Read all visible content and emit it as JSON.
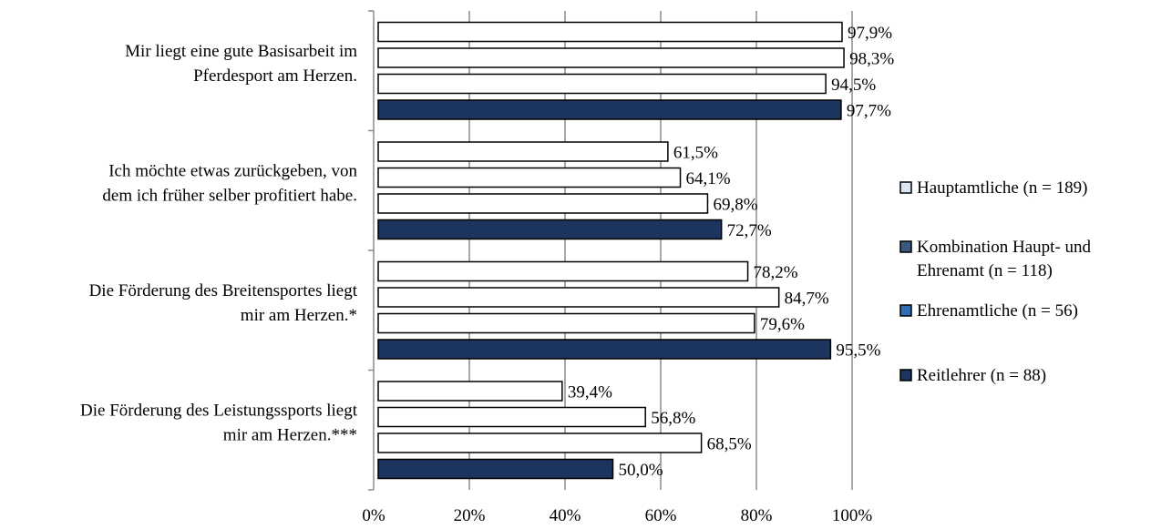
{
  "chart_data": {
    "type": "bar",
    "orientation": "horizontal",
    "title": "",
    "xlabel": "",
    "ylabel": "",
    "xlim": [
      0,
      100
    ],
    "x_ticks": [
      "0%",
      "20%",
      "40%",
      "60%",
      "80%",
      "100%"
    ],
    "grid": true,
    "legend_position": "right",
    "categories": [
      [
        "Mir liegt eine gute Basisarbeit im",
        "Pferdesport am Herzen."
      ],
      [
        "Ich möchte etwas zurückgeben, von",
        "dem ich früher selber profitiert habe."
      ],
      [
        "Die Förderung des Breitensportes liegt",
        "mir am Herzen.*"
      ],
      [
        "Die Förderung des Leistungssports liegt",
        "mir am Herzen.***"
      ]
    ],
    "series": [
      {
        "name": "Hauptamtliche (n = 189)",
        "legend_lines": [
          "Hauptamtliche (n = 189)"
        ],
        "color": "#ffffff",
        "values": [
          97.9,
          61.5,
          78.2,
          39.4
        ],
        "labels": [
          "97,9%",
          "61,5%",
          "78,2%",
          "39,4%"
        ]
      },
      {
        "name": "Kombination Haupt- und Ehrenamt (n = 118)",
        "legend_lines": [
          "Kombination Haupt- und",
          "Ehrenamt (n = 118)"
        ],
        "color": "#ffffff",
        "legend_color": "#3a5a80",
        "values": [
          98.3,
          64.1,
          84.7,
          56.8
        ],
        "labels": [
          "98,3%",
          "64,1%",
          "84,7%",
          "56,8%"
        ]
      },
      {
        "name": "Ehrenamtliche (n = 56)",
        "legend_lines": [
          "Ehrenamtliche (n = 56)"
        ],
        "color": "#ffffff",
        "legend_color": "#2f6db5",
        "values": [
          94.5,
          69.8,
          79.6,
          68.5
        ],
        "labels": [
          "94,5%",
          "69,8%",
          "79,6%",
          "68,5%"
        ]
      },
      {
        "name": "Reitlehrer (n = 88)",
        "legend_lines": [
          "Reitlehrer (n = 88)"
        ],
        "color": "#1b355e",
        "values": [
          97.7,
          72.7,
          95.5,
          50.0
        ],
        "labels": [
          "97,7%",
          "72,7%",
          "95,5%",
          "50,0%"
        ]
      }
    ]
  }
}
